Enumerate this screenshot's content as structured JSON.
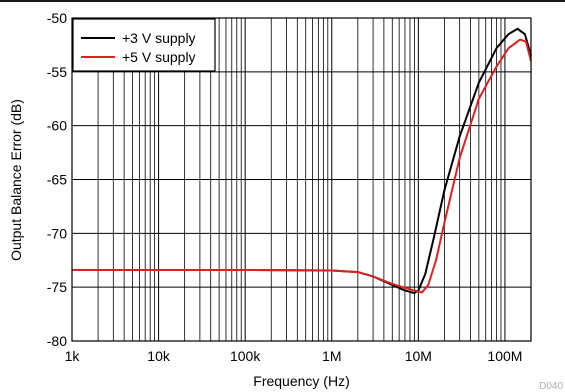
{
  "chart_data": {
    "type": "line",
    "xlabel": "Frequency (Hz)",
    "ylabel": "Output Balance Error (dB)",
    "xscale": "log",
    "xlim": [
      1000,
      200000000
    ],
    "ylim": [
      -80,
      -50
    ],
    "grid": true,
    "legend_position": "top-left",
    "x_tick_labels": [
      {
        "value": 1000,
        "label": "1k"
      },
      {
        "value": 10000,
        "label": "10k"
      },
      {
        "value": 100000,
        "label": "100k"
      },
      {
        "value": 1000000,
        "label": "1M"
      },
      {
        "value": 10000000,
        "label": "10M"
      },
      {
        "value": 100000000,
        "label": "100M"
      }
    ],
    "y_ticks": [
      -50,
      -55,
      -60,
      -65,
      -70,
      -75,
      -80
    ],
    "series": [
      {
        "name": "+3 V supply",
        "color": "#000000",
        "points": [
          [
            1000,
            -73.4
          ],
          [
            100000,
            -73.4
          ],
          [
            1000000,
            -73.45
          ],
          [
            2000000,
            -73.6
          ],
          [
            3000000,
            -74.0
          ],
          [
            5000000,
            -74.8
          ],
          [
            7000000,
            -75.3
          ],
          [
            9000000,
            -75.55
          ],
          [
            10000000,
            -75.3
          ],
          [
            12000000,
            -73.8
          ],
          [
            15000000,
            -70.5
          ],
          [
            20000000,
            -66.0
          ],
          [
            30000000,
            -61.0
          ],
          [
            50000000,
            -56.0
          ],
          [
            80000000,
            -52.8
          ],
          [
            110000000,
            -51.5
          ],
          [
            140000000,
            -51.0
          ],
          [
            170000000,
            -51.5
          ],
          [
            200000000,
            -53.5
          ]
        ]
      },
      {
        "name": "+5 V supply",
        "color": "#e02020",
        "points": [
          [
            1000,
            -73.4
          ],
          [
            100000,
            -73.4
          ],
          [
            1000000,
            -73.45
          ],
          [
            2000000,
            -73.6
          ],
          [
            3000000,
            -74.0
          ],
          [
            5000000,
            -74.7
          ],
          [
            8000000,
            -75.2
          ],
          [
            11000000,
            -75.5
          ],
          [
            13000000,
            -74.8
          ],
          [
            16000000,
            -72.5
          ],
          [
            20000000,
            -69.0
          ],
          [
            30000000,
            -63.0
          ],
          [
            50000000,
            -57.5
          ],
          [
            80000000,
            -54.5
          ],
          [
            110000000,
            -52.8
          ],
          [
            150000000,
            -52.0
          ],
          [
            175000000,
            -52.2
          ],
          [
            200000000,
            -54.0
          ]
        ]
      }
    ]
  },
  "footnote": "D040"
}
